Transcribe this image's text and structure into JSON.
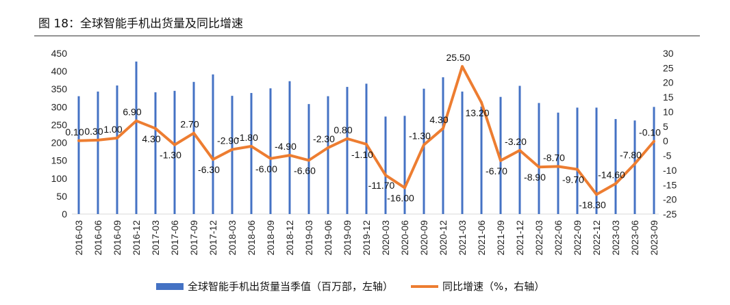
{
  "title": "图 18：全球智能手机出货量及同比增速",
  "colors": {
    "bar": "#4472C4",
    "line": "#ED7D31"
  },
  "chart_data": {
    "type": "bar+line",
    "categories": [
      "2016-03",
      "2016-06",
      "2016-09",
      "2016-12",
      "2017-03",
      "2017-06",
      "2017-09",
      "2017-12",
      "2018-03",
      "2018-06",
      "2018-09",
      "2018-12",
      "2019-03",
      "2019-06",
      "2019-09",
      "2019-12",
      "2020-03",
      "2020-06",
      "2020-09",
      "2020-12",
      "2021-03",
      "2021-06",
      "2021-09",
      "2021-12",
      "2022-03",
      "2022-06",
      "2022-09",
      "2022-12",
      "2023-03",
      "2023-06",
      "2023-09"
    ],
    "series": [
      {
        "name": "全球智能手机出货量当季值（百万部，左轴）",
        "type": "bar",
        "axis": "left",
        "values": [
          330,
          343,
          360,
          427,
          341,
          345,
          370,
          391,
          331,
          339,
          352,
          372,
          308,
          330,
          356,
          365,
          273,
          275,
          351,
          383,
          343,
          301,
          328,
          359,
          311,
          284,
          298,
          298,
          266,
          262,
          300
        ]
      },
      {
        "name": "同比增速（%，右轴）",
        "type": "line",
        "axis": "right",
        "values": [
          0.1,
          0.3,
          1.0,
          6.9,
          4.3,
          -1.3,
          2.7,
          -6.3,
          -2.9,
          -1.8,
          -6.0,
          -4.9,
          -6.6,
          -2.3,
          0.8,
          -1.1,
          -11.7,
          -16.0,
          -1.3,
          4.3,
          25.5,
          13.2,
          -6.7,
          -3.2,
          -8.9,
          -8.7,
          -9.7,
          -18.3,
          -14.6,
          -7.8,
          -0.1
        ]
      }
    ],
    "y_left": {
      "range": [
        0,
        450
      ],
      "ticks": [
        "0",
        "50",
        "100",
        "150",
        "200",
        "250",
        "300",
        "350",
        "400",
        "450"
      ]
    },
    "y_right": {
      "range": [
        -25,
        30
      ],
      "ticks": [
        "-25",
        "-20",
        "-15",
        "-10",
        "-5",
        "0",
        "5",
        "10",
        "15",
        "20",
        "25",
        "30"
      ]
    },
    "data_labels": [
      "0.10",
      "0.30",
      "1.00",
      "6.90",
      "4.30",
      "-1.30",
      "2.70",
      "-6.30",
      "-2.90",
      "-1.80",
      "-6.00",
      "-4.90",
      "-6.60",
      "-2.30",
      "0.80",
      "-1.10",
      "-11.70",
      "-16.00",
      "-1.30",
      "4.30",
      "25.50",
      "13.20",
      "-6.70",
      "-3.20",
      "-8.90",
      "-8.70",
      "-9.70",
      "-18.30",
      "-14.60",
      "-7.80",
      "-0.10"
    ],
    "legend_position": "bottom",
    "grid": false
  }
}
